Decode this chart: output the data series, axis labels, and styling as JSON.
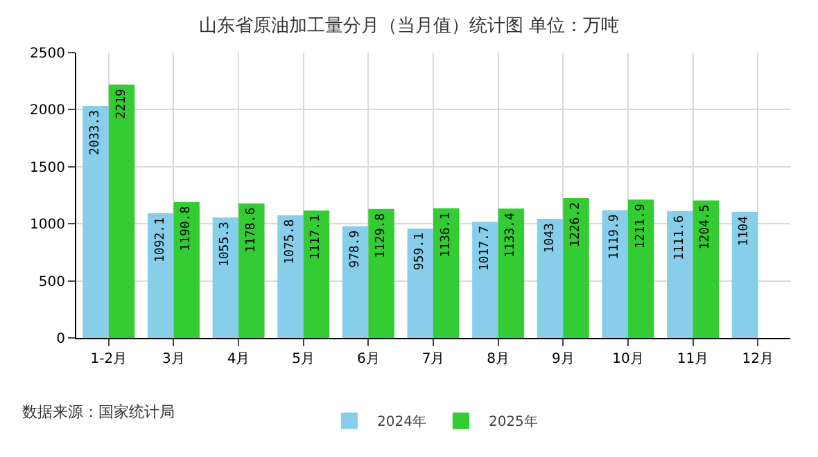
{
  "chart_data": {
    "type": "bar",
    "title": "山东省原油加工量分月（当月值）统计图 单位：万吨",
    "categories": [
      "1-2月",
      "3月",
      "4月",
      "5月",
      "6月",
      "7月",
      "8月",
      "9月",
      "10月",
      "11月",
      "12月"
    ],
    "series": [
      {
        "name": "2024年",
        "color": "#87ceeb",
        "values": [
          2033.3,
          1092.1,
          1055.3,
          1075.8,
          978.9,
          959.1,
          1017.7,
          1043,
          1119.9,
          1111.6,
          1104
        ]
      },
      {
        "name": "2025年",
        "color": "#33cc33",
        "values": [
          2219,
          1190.8,
          1178.6,
          1117.1,
          1129.8,
          1136.1,
          1133.4,
          1226.2,
          1211.9,
          1204.5,
          null
        ]
      }
    ],
    "ylim": [
      0,
      2500
    ],
    "yticks": [
      0,
      500,
      1000,
      1500,
      2000,
      2500
    ],
    "grid": true,
    "legend": "bottom",
    "data_labels": true,
    "annotations": [
      "数据来源：国家统计局"
    ]
  }
}
